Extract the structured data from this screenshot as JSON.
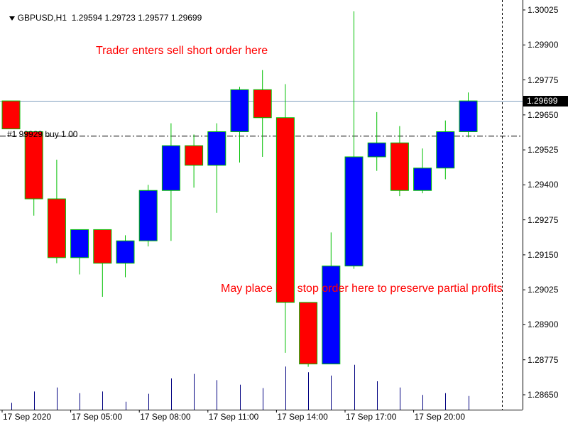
{
  "header": {
    "symbol": "GBPUSD,H1",
    "open": "1.29594",
    "high": "1.29723",
    "low": "1.29577",
    "close": "1.29699"
  },
  "annotations": {
    "sell": "Trader enters sell short order here",
    "buy_stop": "May place buy stop order here to preserve partial profits"
  },
  "order_line_label": "#1 99929 buy 1.00",
  "current_price": "1.29699",
  "colors": {
    "bull": "#0000ff",
    "bear": "#ff0000",
    "border": "#00c000",
    "wick": "#00c000",
    "volume": "#000080",
    "annotation": "#ff0000"
  },
  "chart_data": {
    "type": "candlestick",
    "symbol": "GBPUSD",
    "timeframe": "H1",
    "y_ticks": [
      "1.30025",
      "1.29900",
      "1.29775",
      "1.29650",
      "1.29525",
      "1.29400",
      "1.29275",
      "1.29150",
      "1.29025",
      "1.28900",
      "1.28775",
      "1.28650"
    ],
    "ylim": [
      1.2861,
      1.3005
    ],
    "x_ticks": [
      "17 Sep 2020",
      "17 Sep 05:00",
      "17 Sep 08:00",
      "17 Sep 11:00",
      "17 Sep 14:00",
      "17 Sep 17:00",
      "17 Sep 20:00"
    ],
    "current_price": 1.29699,
    "order_line_price": 1.29574,
    "candles": [
      {
        "open": 1.297,
        "high": 1.297,
        "low": 1.296,
        "close": 1.296,
        "volume": 0.12
      },
      {
        "open": 1.2959,
        "high": 1.2959,
        "low": 1.2929,
        "close": 1.2935,
        "volume": 0.32
      },
      {
        "open": 1.2935,
        "high": 1.2949,
        "low": 1.2912,
        "close": 1.2914,
        "volume": 0.39
      },
      {
        "open": 1.2914,
        "high": 1.2924,
        "low": 1.2908,
        "close": 1.2924,
        "volume": 0.29
      },
      {
        "open": 1.2924,
        "high": 1.2924,
        "low": 1.29,
        "close": 1.2912,
        "volume": 0.32
      },
      {
        "open": 1.2912,
        "high": 1.2922,
        "low": 1.2907,
        "close": 1.292,
        "volume": 0.14
      },
      {
        "open": 1.292,
        "high": 1.294,
        "low": 1.2918,
        "close": 1.2938,
        "volume": 0.28
      },
      {
        "open": 1.2938,
        "high": 1.2962,
        "low": 1.292,
        "close": 1.2954,
        "volume": 0.55
      },
      {
        "open": 1.2954,
        "high": 1.2958,
        "low": 1.2939,
        "close": 1.2947,
        "volume": 0.63
      },
      {
        "open": 1.2947,
        "high": 1.2962,
        "low": 1.293,
        "close": 1.2959,
        "volume": 0.52
      },
      {
        "open": 1.2959,
        "high": 1.2975,
        "low": 1.2948,
        "close": 1.2974,
        "volume": 0.44
      },
      {
        "open": 1.2974,
        "high": 1.2981,
        "low": 1.295,
        "close": 1.2964,
        "volume": 0.38
      },
      {
        "open": 1.2964,
        "high": 1.2976,
        "low": 1.288,
        "close": 1.2898,
        "volume": 0.76
      },
      {
        "open": 1.2898,
        "high": 1.2898,
        "low": 1.2875,
        "close": 1.2876,
        "volume": 0.66
      },
      {
        "open": 1.2876,
        "high": 1.2923,
        "low": 1.2876,
        "close": 1.2911,
        "volume": 0.6
      },
      {
        "open": 1.2911,
        "high": 1.3002,
        "low": 1.291,
        "close": 1.295,
        "volume": 0.79
      },
      {
        "open": 1.295,
        "high": 1.2966,
        "low": 1.2945,
        "close": 1.2955,
        "volume": 0.5
      },
      {
        "open": 1.2955,
        "high": 1.2961,
        "low": 1.2936,
        "close": 1.2938,
        "volume": 0.39
      },
      {
        "open": 1.2938,
        "high": 1.2953,
        "low": 1.2937,
        "close": 1.2946,
        "volume": 0.26
      },
      {
        "open": 1.2946,
        "high": 1.2963,
        "low": 1.2942,
        "close": 1.2959,
        "volume": 0.29
      },
      {
        "open": 1.2959,
        "high": 1.2973,
        "low": 1.2957,
        "close": 1.297,
        "volume": 0.24
      }
    ]
  }
}
